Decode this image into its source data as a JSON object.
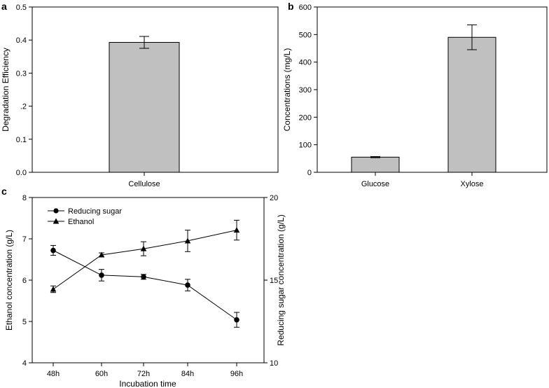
{
  "chart_data": [
    {
      "panel": "a",
      "type": "bar",
      "categories": [
        "Cellulose"
      ],
      "values": [
        0.393
      ],
      "errors": [
        0.018
      ],
      "ylabel": "Degradation Efficiency",
      "xlabel": "",
      "ylim": [
        0,
        0.5
      ],
      "yticks": [
        0.0,
        0.1,
        0.2,
        0.3,
        0.4,
        0.5
      ],
      "ytick_labels": [
        "0.0",
        "0.1",
        ".2",
        "0.3",
        "0.4",
        "0.5"
      ],
      "bar_color": "#c0c0c0"
    },
    {
      "panel": "b",
      "type": "bar",
      "categories": [
        "Glucose",
        "Xylose"
      ],
      "values": [
        55,
        490
      ],
      "errors": [
        2,
        45
      ],
      "ylabel": "Concentrations (mg/L)",
      "xlabel": "",
      "ylim": [
        0,
        600
      ],
      "yticks": [
        0,
        100,
        200,
        300,
        400,
        500,
        600
      ],
      "ytick_labels": [
        "0",
        "100",
        "200",
        "300",
        "400",
        "500",
        "600"
      ],
      "bar_color": "#c0c0c0"
    },
    {
      "panel": "c",
      "type": "line",
      "categories": [
        "48h",
        "60h",
        "72h",
        "84h",
        "96h"
      ],
      "xlabel": "Incubation time",
      "ylabel_left": "Ethanol concentration (g/L)",
      "ylabel_right": "Reducing sugar concentration (g/L)",
      "ylim_left": [
        4,
        8
      ],
      "yticks_left": [
        4,
        5,
        6,
        7,
        8
      ],
      "ylim_right": [
        10,
        20
      ],
      "yticks_right": [
        10,
        15,
        20
      ],
      "legend_position": "top-left",
      "series": [
        {
          "name": "Reducing sugar",
          "marker": "circle",
          "axis": "right",
          "values": [
            16.8,
            15.3,
            15.2,
            14.7,
            12.6
          ],
          "errors": [
            0.3,
            0.35,
            0.15,
            0.35,
            0.45
          ]
        },
        {
          "name": "Ethanol",
          "marker": "triangle",
          "axis": "left",
          "values": [
            5.78,
            6.61,
            6.76,
            6.95,
            7.21
          ],
          "errors": [
            0.08,
            0.05,
            0.17,
            0.26,
            0.24
          ]
        }
      ]
    }
  ]
}
